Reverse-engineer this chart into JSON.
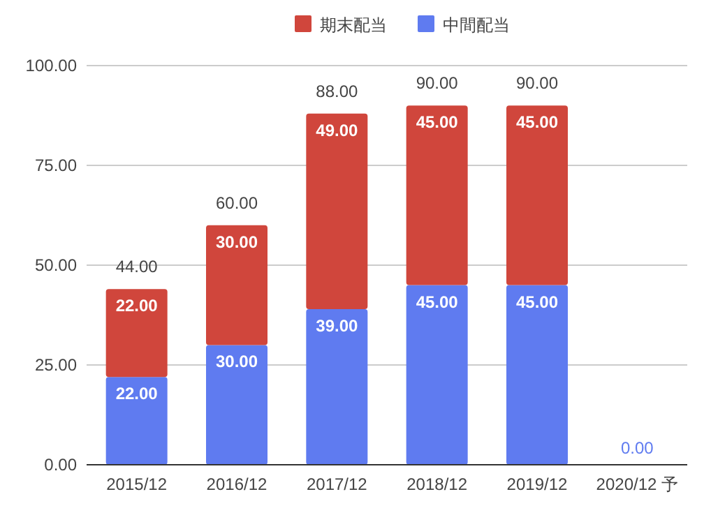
{
  "chart_data": {
    "type": "bar",
    "stacked": true,
    "legend": "top",
    "grid": "y",
    "categories": [
      "2015/12",
      "2016/12",
      "2017/12",
      "2018/12",
      "2019/12",
      "2020/12 予"
    ],
    "series": [
      {
        "name": "中間配当",
        "color": "#5f7bf0",
        "values": [
          22,
          30,
          39,
          45,
          45,
          0
        ],
        "value_labels": [
          "22.00",
          "30.00",
          "39.00",
          "45.00",
          "45.00",
          "0.00"
        ]
      },
      {
        "name": "期末配当",
        "color": "#d0463c",
        "values": [
          22,
          30,
          49,
          45,
          45,
          null
        ],
        "value_labels": [
          "22.00",
          "30.00",
          "49.00",
          "45.00",
          "45.00",
          null
        ]
      }
    ],
    "totals": [
      "44.00",
      "60.00",
      "88.00",
      "90.00",
      "90.00",
      null
    ],
    "ylim": [
      0,
      100
    ],
    "yticks": [
      {
        "value": 0,
        "label": "0.00"
      },
      {
        "value": 25,
        "label": "25.00"
      },
      {
        "value": 50,
        "label": "50.00"
      },
      {
        "value": 75,
        "label": "75.00"
      },
      {
        "value": 100,
        "label": "100.00"
      }
    ]
  }
}
